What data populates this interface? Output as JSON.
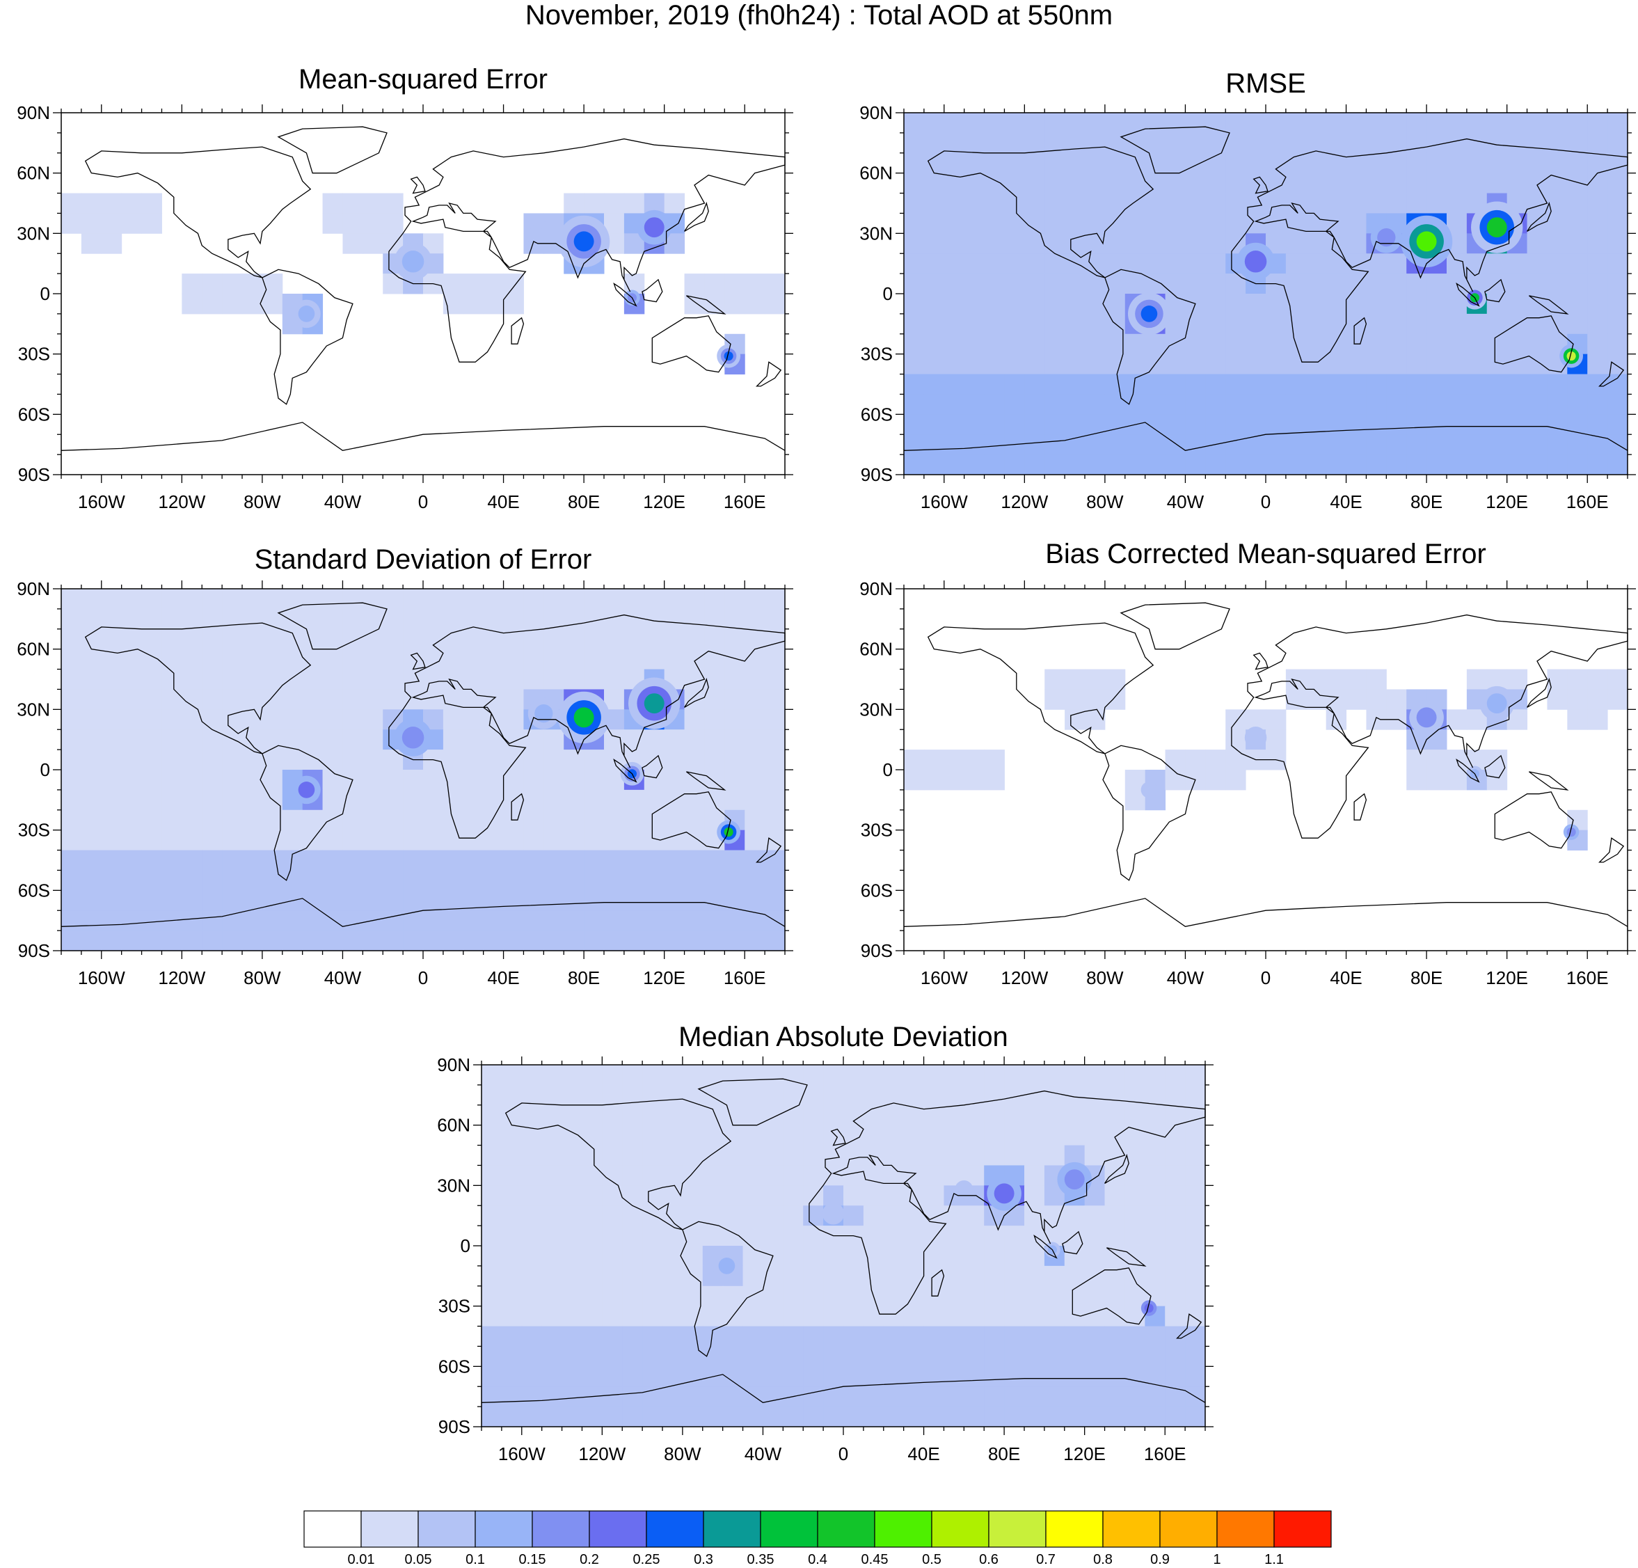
{
  "title": "November, 2019 (fh0h24) : Total AOD at 550nm",
  "axes": {
    "lat_labels": [
      "90N",
      "60N",
      "30N",
      "0",
      "30S",
      "60S",
      "90S"
    ],
    "lon_labels": [
      "160W",
      "120W",
      "80W",
      "40W",
      "0",
      "40E",
      "80E",
      "120E",
      "160E"
    ]
  },
  "panels": [
    {
      "id": "mse",
      "title": "Mean-squared Error",
      "base_level": 0,
      "intensity": 0.55
    },
    {
      "id": "rmse",
      "title": "RMSE",
      "base_level": 2,
      "intensity": 1.0
    },
    {
      "id": "std",
      "title": "Standard Deviation of Error",
      "base_level": 1,
      "intensity": 0.8
    },
    {
      "id": "bcmse",
      "title": "Bias Corrected Mean-squared Error",
      "base_level": 0,
      "intensity": 0.35
    },
    {
      "id": "mad",
      "title": "Median Absolute Deviation",
      "base_level": 1,
      "intensity": 0.45
    }
  ],
  "colorbar": {
    "labels": [
      "0.01",
      "0.05",
      "0.1",
      "0.15",
      "0.2",
      "0.25",
      "0.3",
      "0.35",
      "0.4",
      "0.45",
      "0.5",
      "0.6",
      "0.7",
      "0.8",
      "0.9",
      "1",
      "1.1"
    ],
    "colors": [
      "#ffffff",
      "#d4dcf7",
      "#b3c3f5",
      "#98b4f7",
      "#8090f2",
      "#6a6ef0",
      "#0a5ef5",
      "#0a9a96",
      "#00c23a",
      "#12c42a",
      "#4ef000",
      "#aef000",
      "#c8f03a",
      "#ffff00",
      "#ffc000",
      "#ffae00",
      "#ff7800",
      "#ff1a00"
    ]
  }
}
